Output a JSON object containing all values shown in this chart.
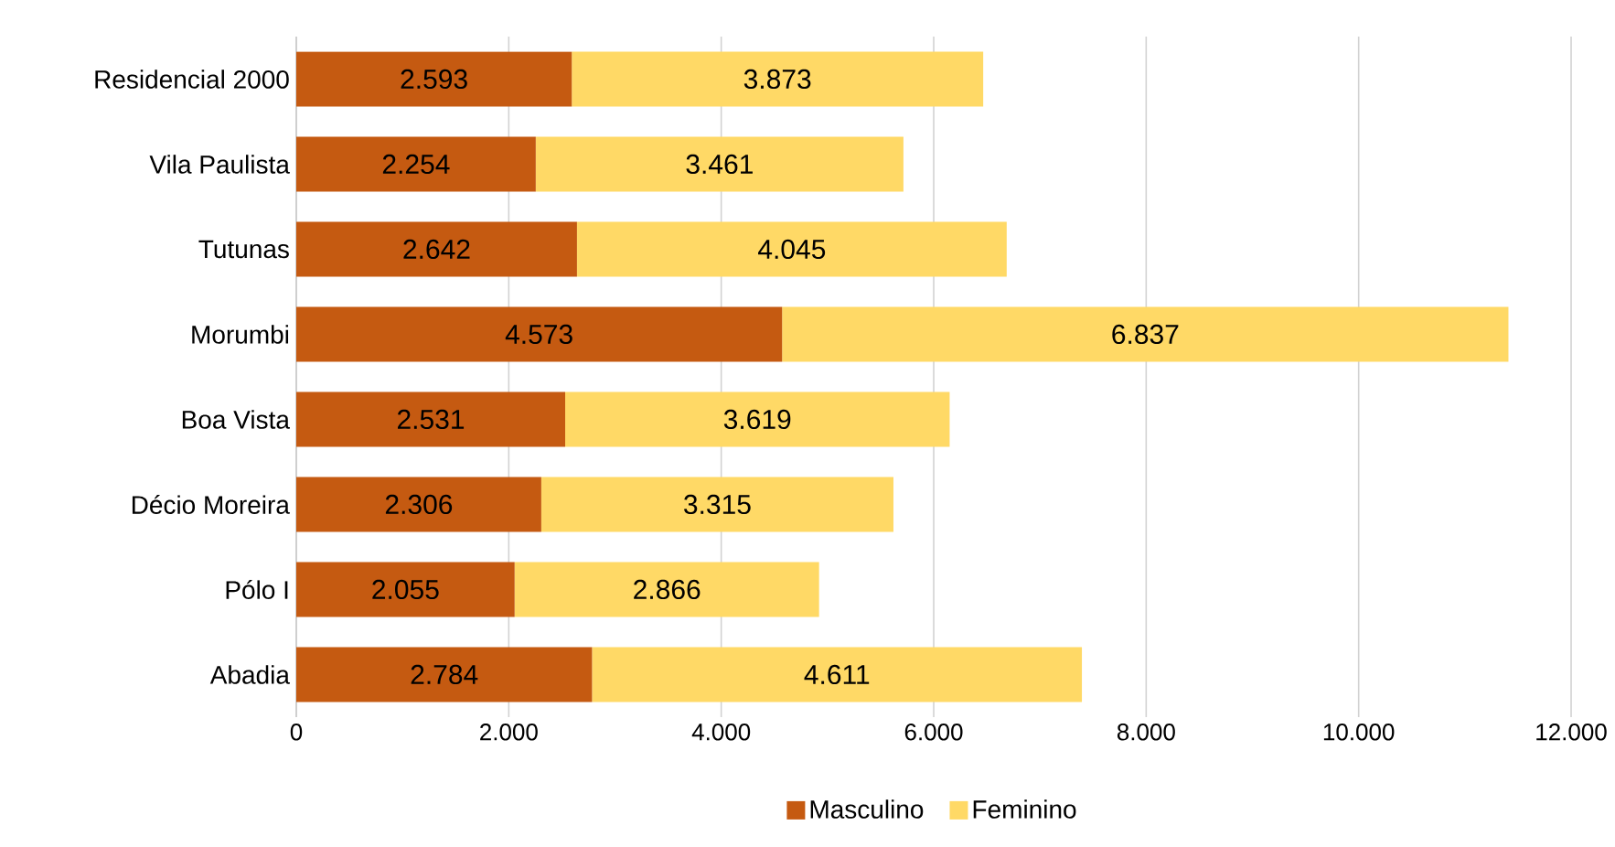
{
  "chart_data": {
    "type": "bar",
    "orientation": "horizontal",
    "stacked": true,
    "categories": [
      "Residencial 2000",
      "Vila Paulista",
      "Tutunas",
      "Morumbi",
      "Boa Vista",
      "Décio Moreira",
      "Pólo I",
      "Abadia"
    ],
    "series": [
      {
        "name": "Masculino",
        "color": "#c55a11",
        "values": [
          2593,
          2254,
          2642,
          4573,
          2531,
          2306,
          2055,
          2784
        ],
        "value_labels": [
          "2.593",
          "2.254",
          "2.642",
          "4.573",
          "2.531",
          "2.306",
          "2.055",
          "2.784"
        ]
      },
      {
        "name": "Feminino",
        "color": "#ffd966",
        "values": [
          3873,
          3461,
          4045,
          6837,
          3619,
          3315,
          2866,
          4611
        ],
        "value_labels": [
          "3.873",
          "3.461",
          "4.045",
          "6.837",
          "3.619",
          "3.315",
          "2.866",
          "4.611"
        ]
      }
    ],
    "xlim": [
      0,
      12000
    ],
    "xticks": [
      0,
      {
        "value": 2000,
        "label": "2.000"
      },
      {
        "value": 4000,
        "label": "4.000"
      },
      {
        "value": 6000,
        "label": "6.000"
      },
      {
        "value": 8000,
        "label": "8.000"
      },
      {
        "value": 10000,
        "label": "10.000"
      },
      {
        "value": 12000,
        "label": "12.000"
      }
    ],
    "grid": "x",
    "legend": "bottom"
  }
}
